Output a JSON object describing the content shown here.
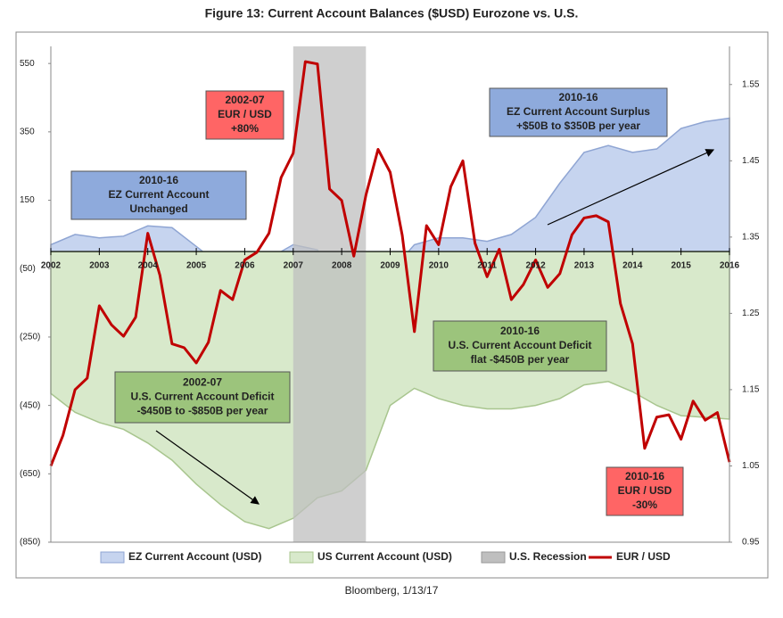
{
  "chart_data": {
    "type": "combo",
    "title": "Figure 13:  Current Account Balances ($USD) Eurozone vs. U.S.",
    "source": "Bloomberg, 1/13/17",
    "xlim": [
      2002,
      2016
    ],
    "xticks": [
      2002,
      2003,
      2004,
      2005,
      2006,
      2007,
      2008,
      2009,
      2010,
      2011,
      2012,
      2013,
      2014,
      2015,
      2016
    ],
    "ylim": [
      -850,
      600
    ],
    "yticks": [
      550,
      350,
      150,
      {
        "value": -50,
        "label": "(50)"
      },
      {
        "value": -250,
        "label": "(250)"
      },
      {
        "value": -450,
        "label": "(450)"
      },
      {
        "value": -650,
        "label": "(650)"
      },
      {
        "value": -850,
        "label": "(850)"
      }
    ],
    "y2lim": [
      0.95,
      1.6
    ],
    "y2ticks": [
      1.55,
      1.45,
      1.35,
      1.25,
      1.15,
      1.05,
      0.95
    ],
    "series": [
      {
        "name": "EZ Current Account (USD)",
        "type": "area",
        "color": "#c6d4ef",
        "x": [
          2002,
          2002.5,
          2003,
          2003.5,
          2004,
          2004.5,
          2005,
          2005.5,
          2006,
          2006.5,
          2007,
          2007.5,
          2008,
          2008.5,
          2009,
          2009.5,
          2010,
          2010.5,
          2011,
          2011.5,
          2012,
          2012.5,
          2013,
          2013.5,
          2014,
          2014.5,
          2015,
          2015.5,
          2016
        ],
        "values": [
          20,
          50,
          40,
          45,
          75,
          70,
          15,
          -40,
          -50,
          -20,
          20,
          5,
          -130,
          -150,
          -60,
          20,
          40,
          40,
          30,
          50,
          100,
          200,
          290,
          310,
          290,
          300,
          360,
          380,
          390
        ]
      },
      {
        "name": "US Current Account (USD)",
        "type": "area",
        "color": "#d8e9cb",
        "x": [
          2002,
          2002.5,
          2003,
          2003.5,
          2004,
          2004.5,
          2005,
          2005.5,
          2006,
          2006.5,
          2007,
          2007.5,
          2008,
          2008.5,
          2009,
          2009.5,
          2010,
          2010.5,
          2011,
          2011.5,
          2012,
          2012.5,
          2013,
          2013.5,
          2014,
          2014.5,
          2015,
          2015.5,
          2016
        ],
        "values": [
          -415,
          -470,
          -500,
          -520,
          -560,
          -610,
          -680,
          -740,
          -790,
          -810,
          -780,
          -720,
          -700,
          -640,
          -450,
          -400,
          -430,
          -450,
          -460,
          -460,
          -450,
          -430,
          -390,
          -380,
          -410,
          -450,
          -480,
          -485,
          -490
        ]
      },
      {
        "name": "U.S. Recession",
        "type": "band",
        "color": "#bfbfbf",
        "x": [
          2007,
          2008.5
        ]
      },
      {
        "name": "EUR / USD",
        "type": "line",
        "color": "#c00000",
        "axis": "y2",
        "x": [
          2002,
          2002.25,
          2002.5,
          2002.75,
          2003,
          2003.25,
          2003.5,
          2003.75,
          2004,
          2004.25,
          2004.5,
          2004.75,
          2005,
          2005.25,
          2005.5,
          2005.75,
          2006,
          2006.25,
          2006.5,
          2006.75,
          2007,
          2007.25,
          2007.5,
          2007.75,
          2008,
          2008.25,
          2008.5,
          2008.75,
          2009,
          2009.25,
          2009.5,
          2009.75,
          2010,
          2010.25,
          2010.5,
          2010.75,
          2011,
          2011.25,
          2011.5,
          2011.75,
          2012,
          2012.25,
          2012.5,
          2012.75,
          2013,
          2013.25,
          2013.5,
          2013.75,
          2014,
          2014.25,
          2014.5,
          2014.75,
          2015,
          2015.25,
          2015.5,
          2015.75,
          2016
        ],
        "values": [
          1.05,
          1.09,
          1.15,
          1.165,
          1.26,
          1.235,
          1.22,
          1.245,
          1.355,
          1.3,
          1.21,
          1.205,
          1.185,
          1.212,
          1.28,
          1.268,
          1.32,
          1.33,
          1.355,
          1.428,
          1.46,
          1.58,
          1.577,
          1.413,
          1.398,
          1.325,
          1.405,
          1.465,
          1.435,
          1.352,
          1.226,
          1.365,
          1.34,
          1.416,
          1.45,
          1.342,
          1.298,
          1.334,
          1.268,
          1.288,
          1.32,
          1.284,
          1.302,
          1.353,
          1.375,
          1.378,
          1.37,
          1.263,
          1.21,
          1.073,
          1.114,
          1.117,
          1.085,
          1.135,
          1.11,
          1.12,
          1.055
        ]
      }
    ],
    "annotations": [
      {
        "lines": [
          "2010-16",
          "EZ Current Account",
          "Unchanged"
        ],
        "color": "#8eaadc"
      },
      {
        "lines": [
          "2002-07",
          "EUR / USD",
          "+80%"
        ],
        "color": "#ff6565"
      },
      {
        "lines": [
          "2010-16",
          "EZ Current Account Surplus",
          "+$50B to $350B per year"
        ],
        "color": "#8eaadc"
      },
      {
        "lines": [
          "2010-16",
          "U.S. Current Account Deficit",
          "flat -$450B per year"
        ],
        "color": "#9cc47c"
      },
      {
        "lines": [
          "2002-07",
          "U.S. Current Account Deficit",
          "-$450B to -$850B per year"
        ],
        "color": "#9cc47c"
      },
      {
        "lines": [
          "2010-16",
          "EUR / USD",
          "-30%"
        ],
        "color": "#ff6565"
      }
    ]
  }
}
